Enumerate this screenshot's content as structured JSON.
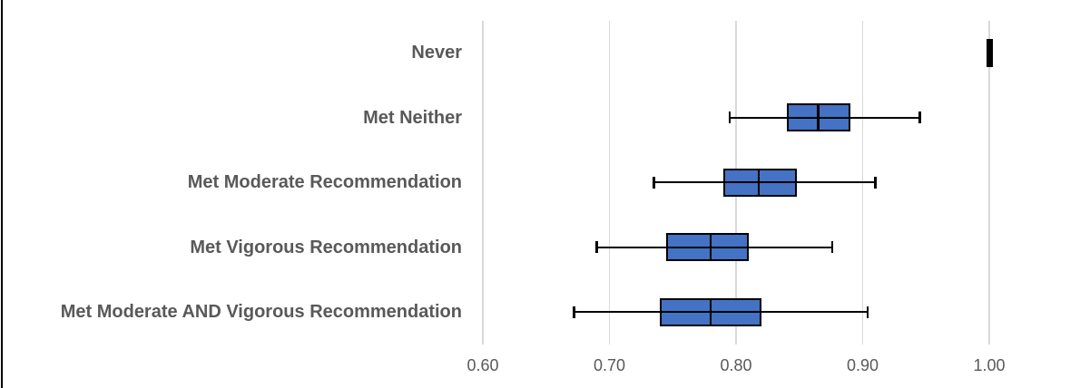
{
  "chart_data": {
    "type": "boxplot",
    "orientation": "horizontal",
    "title": "",
    "xlabel": "",
    "ylabel": "",
    "xlim": [
      0.6,
      1.0
    ],
    "x_ticks": [
      0.6,
      0.7,
      0.8,
      0.9,
      1.0
    ],
    "x_tick_labels": [
      "0.60",
      "0.70",
      "0.80",
      "0.90",
      "1.00"
    ],
    "grid": "vertical-gridlines-on",
    "legend": "none",
    "categories": [
      "Never",
      "Met Neither",
      "Met Moderate Recommendation",
      "Met Vigorous Recommendation",
      "Met Moderate AND Vigorous Recommendation"
    ],
    "series": [
      {
        "name": "Never",
        "whisker_low": 1.0,
        "q1": 1.0,
        "median": 1.0,
        "q3": 1.0,
        "whisker_high": 1.0,
        "degenerate": true
      },
      {
        "name": "Met Neither",
        "whisker_low": 0.795,
        "q1": 0.84,
        "median": 0.865,
        "q3": 0.89,
        "whisker_high": 0.945,
        "degenerate": false
      },
      {
        "name": "Met Moderate Recommendation",
        "whisker_low": 0.735,
        "q1": 0.79,
        "median": 0.818,
        "q3": 0.848,
        "whisker_high": 0.91,
        "degenerate": false
      },
      {
        "name": "Met Vigorous Recommendation",
        "whisker_low": 0.69,
        "q1": 0.745,
        "median": 0.78,
        "q3": 0.81,
        "whisker_high": 0.876,
        "degenerate": false
      },
      {
        "name": "Met Moderate AND Vigorous Recommendation",
        "whisker_low": 0.672,
        "q1": 0.74,
        "median": 0.78,
        "q3": 0.82,
        "whisker_high": 0.904,
        "degenerate": false
      }
    ]
  },
  "colors": {
    "box_fill": "#4472C4",
    "box_border": "#000000",
    "whisker": "#000000",
    "median": "#000000",
    "degenerate_bar": "#000000",
    "gridline": "#D9D9D9",
    "category_label_text": "#595959",
    "axis_tick_text": "#595959",
    "frame_line": "#000000",
    "background": "#FFFFFF"
  }
}
